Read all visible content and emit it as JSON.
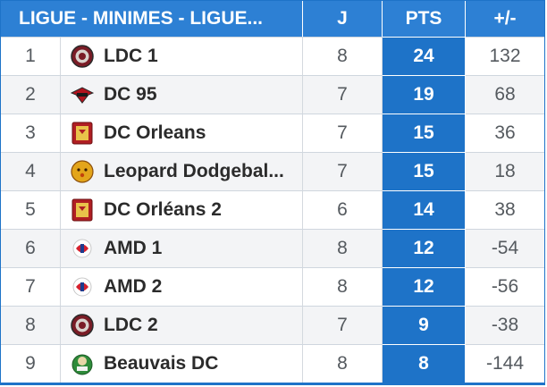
{
  "table": {
    "headers": {
      "team": "LIGUE - MINIMES - LIGUE...",
      "played": "J",
      "points": "PTS",
      "diff": "+/-"
    },
    "rows": [
      {
        "rank": "1",
        "team": "LDC 1",
        "played": "8",
        "points": "24",
        "diff": "132",
        "logo": "ldc-crest-icon"
      },
      {
        "rank": "2",
        "team": "DC 95",
        "played": "7",
        "points": "19",
        "diff": "68",
        "logo": "dc95-bird-icon"
      },
      {
        "rank": "3",
        "team": "DC Orleans",
        "played": "7",
        "points": "15",
        "diff": "36",
        "logo": "orleans-shield-icon"
      },
      {
        "rank": "4",
        "team": "Leopard Dodgebal...",
        "played": "7",
        "points": "15",
        "diff": "18",
        "logo": "leopard-head-icon"
      },
      {
        "rank": "5",
        "team": "DC Orléans 2",
        "played": "6",
        "points": "14",
        "diff": "38",
        "logo": "orleans-shield-icon"
      },
      {
        "rank": "6",
        "team": "AMD 1",
        "played": "8",
        "points": "12",
        "diff": "-54",
        "logo": "amd-badge-icon"
      },
      {
        "rank": "7",
        "team": "AMD 2",
        "played": "8",
        "points": "12",
        "diff": "-56",
        "logo": "amd-badge-icon"
      },
      {
        "rank": "8",
        "team": "LDC 2",
        "played": "7",
        "points": "9",
        "diff": "-38",
        "logo": "ldc-crest-icon"
      },
      {
        "rank": "9",
        "team": "Beauvais DC",
        "played": "8",
        "points": "8",
        "diff": "-144",
        "logo": "beauvais-crest-icon"
      }
    ]
  },
  "colors": {
    "header_bg": "#2d80d4",
    "points_bg": "#1e73c8",
    "row_alt_bg": "#f3f4f6"
  }
}
